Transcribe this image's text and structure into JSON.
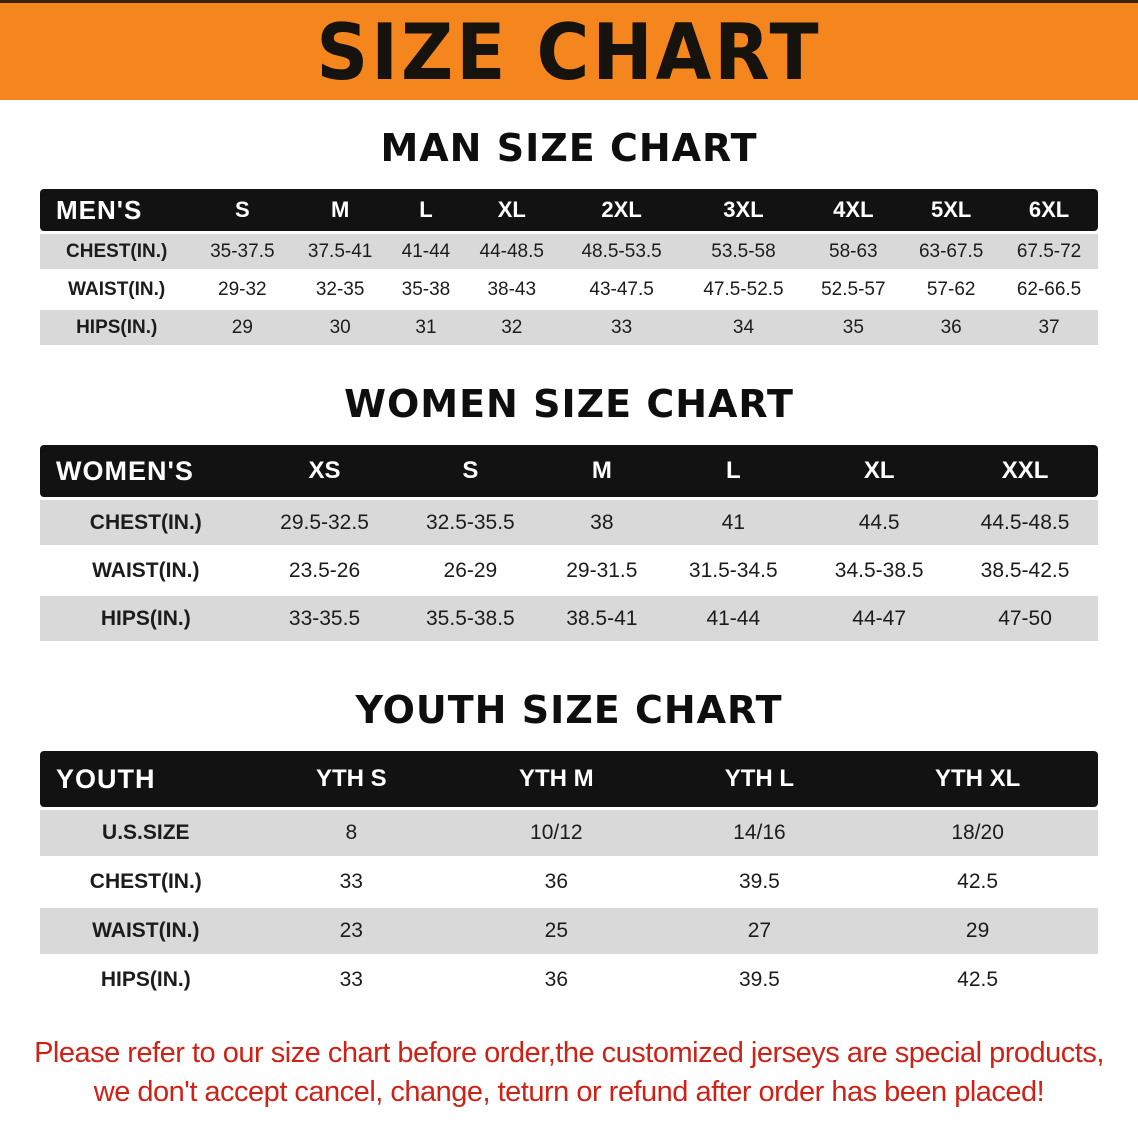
{
  "banner": {
    "title": "SIZE CHART"
  },
  "colors": {
    "banner_orange": "#f5861d",
    "header_black": "#121212",
    "row_gray": "#d9d9d9",
    "footer_red": "#cf2217"
  },
  "tables": [
    {
      "id": "men",
      "title": "MAN SIZE CHART",
      "header": [
        "MEN'S",
        "S",
        "M",
        "L",
        "XL",
        "2XL",
        "3XL",
        "4XL",
        "5XL",
        "6XL"
      ],
      "rows": [
        [
          "CHEST(IN.)",
          "35-37.5",
          "37.5-41",
          "41-44",
          "44-48.5",
          "48.5-53.5",
          "53.5-58",
          "58-63",
          "63-67.5",
          "67.5-72"
        ],
        [
          "WAIST(IN.)",
          "29-32",
          "32-35",
          "35-38",
          "38-43",
          "43-47.5",
          "47.5-52.5",
          "52.5-57",
          "57-62",
          "62-66.5"
        ],
        [
          "HIPS(IN.)",
          "29",
          "30",
          "31",
          "32",
          "33",
          "34",
          "35",
          "36",
          "37"
        ]
      ]
    },
    {
      "id": "women",
      "title": "WOMEN SIZE CHART",
      "header": [
        "WOMEN'S",
        "XS",
        "S",
        "M",
        "L",
        "XL",
        "XXL"
      ],
      "rows": [
        [
          "CHEST(IN.)",
          "29.5-32.5",
          "32.5-35.5",
          "38",
          "41",
          "44.5",
          "44.5-48.5"
        ],
        [
          "WAIST(IN.)",
          "23.5-26",
          "26-29",
          "29-31.5",
          "31.5-34.5",
          "34.5-38.5",
          "38.5-42.5"
        ],
        [
          "HIPS(IN.)",
          "33-35.5",
          "35.5-38.5",
          "38.5-41",
          "41-44",
          "44-47",
          "47-50"
        ]
      ]
    },
    {
      "id": "youth",
      "title": "YOUTH SIZE CHART",
      "header": [
        "YOUTH",
        "YTH S",
        "YTH M",
        "YTH L",
        "YTH XL"
      ],
      "rows": [
        [
          "U.S.SIZE",
          "8",
          "10/12",
          "14/16",
          "18/20"
        ],
        [
          "CHEST(IN.)",
          "33",
          "36",
          "39.5",
          "42.5"
        ],
        [
          "WAIST(IN.)",
          "23",
          "25",
          "27",
          "29"
        ],
        [
          "HIPS(IN.)",
          "33",
          "36",
          "39.5",
          "42.5"
        ]
      ]
    }
  ],
  "footer": {
    "line1": "Please refer to our size chart before order,the customized jerseys are special products,",
    "line2": "we don't accept cancel, change, teturn or refund after order has been placed!"
  }
}
